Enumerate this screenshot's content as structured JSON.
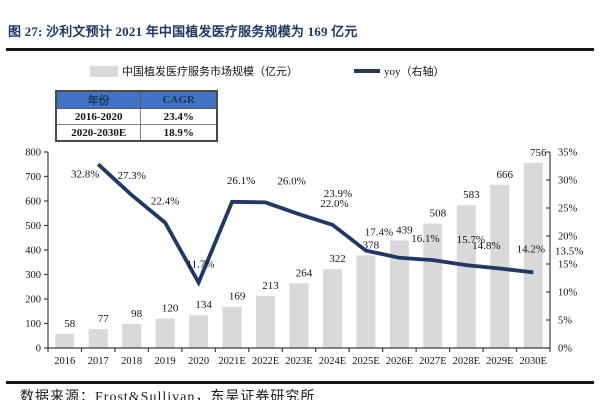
{
  "figure": {
    "title": "图 27: 沙利文预计 2021 年中国植发医疗服务规模为 169 亿元",
    "source_note": "数据来源：Frost&Sullivan，东吴证券研究所"
  },
  "legend": {
    "bar_label": "中国植发医疗服务市场规模（亿元）",
    "line_label": "yoy（右轴）"
  },
  "cagr_table": {
    "headers": [
      "年份",
      "CAGR"
    ],
    "rows": [
      [
        "2016-2020",
        "23.4%"
      ],
      [
        "2020-2030E",
        "18.9%"
      ]
    ]
  },
  "colors": {
    "accent_title": "#1f3864",
    "bar_fill": "#d9d9d9",
    "line_stroke": "#1f3864",
    "axis": "#3f3f3f",
    "label_text": "#141414",
    "table_header_bg": "#4472c4",
    "table_header_text": "#17375e",
    "divider": "#151515"
  },
  "chart_data": {
    "type": "bar+line",
    "title": "图 27: 沙利文预计 2021 年中国植发医疗服务规模为 169 亿元",
    "categories": [
      "2016",
      "2017",
      "2018",
      "2019",
      "2020",
      "2021E",
      "2022E",
      "2023E",
      "2024E",
      "2025E",
      "2026E",
      "2027E",
      "2028E",
      "2029E",
      "2030E"
    ],
    "series": [
      {
        "name": "中国植发医疗服务市场规模（亿元）",
        "type": "bar",
        "axis": "left",
        "values": [
          58,
          77,
          98,
          120,
          134,
          169,
          213,
          264,
          322,
          378,
          439,
          508,
          583,
          666,
          756
        ]
      },
      {
        "name": "yoy（右轴）",
        "type": "line",
        "axis": "right",
        "values": [
          null,
          32.8,
          27.3,
          22.4,
          11.7,
          26.1,
          26.0,
          23.9,
          22.0,
          17.4,
          16.1,
          15.7,
          14.8,
          14.2,
          13.5
        ]
      }
    ],
    "left_axis": {
      "min": 0,
      "max": 800,
      "step": 100
    },
    "right_axis": {
      "min": 0,
      "max": 35,
      "step": 5,
      "suffix": "%"
    },
    "grid": false,
    "legend_position": "top",
    "data_labels": true
  }
}
